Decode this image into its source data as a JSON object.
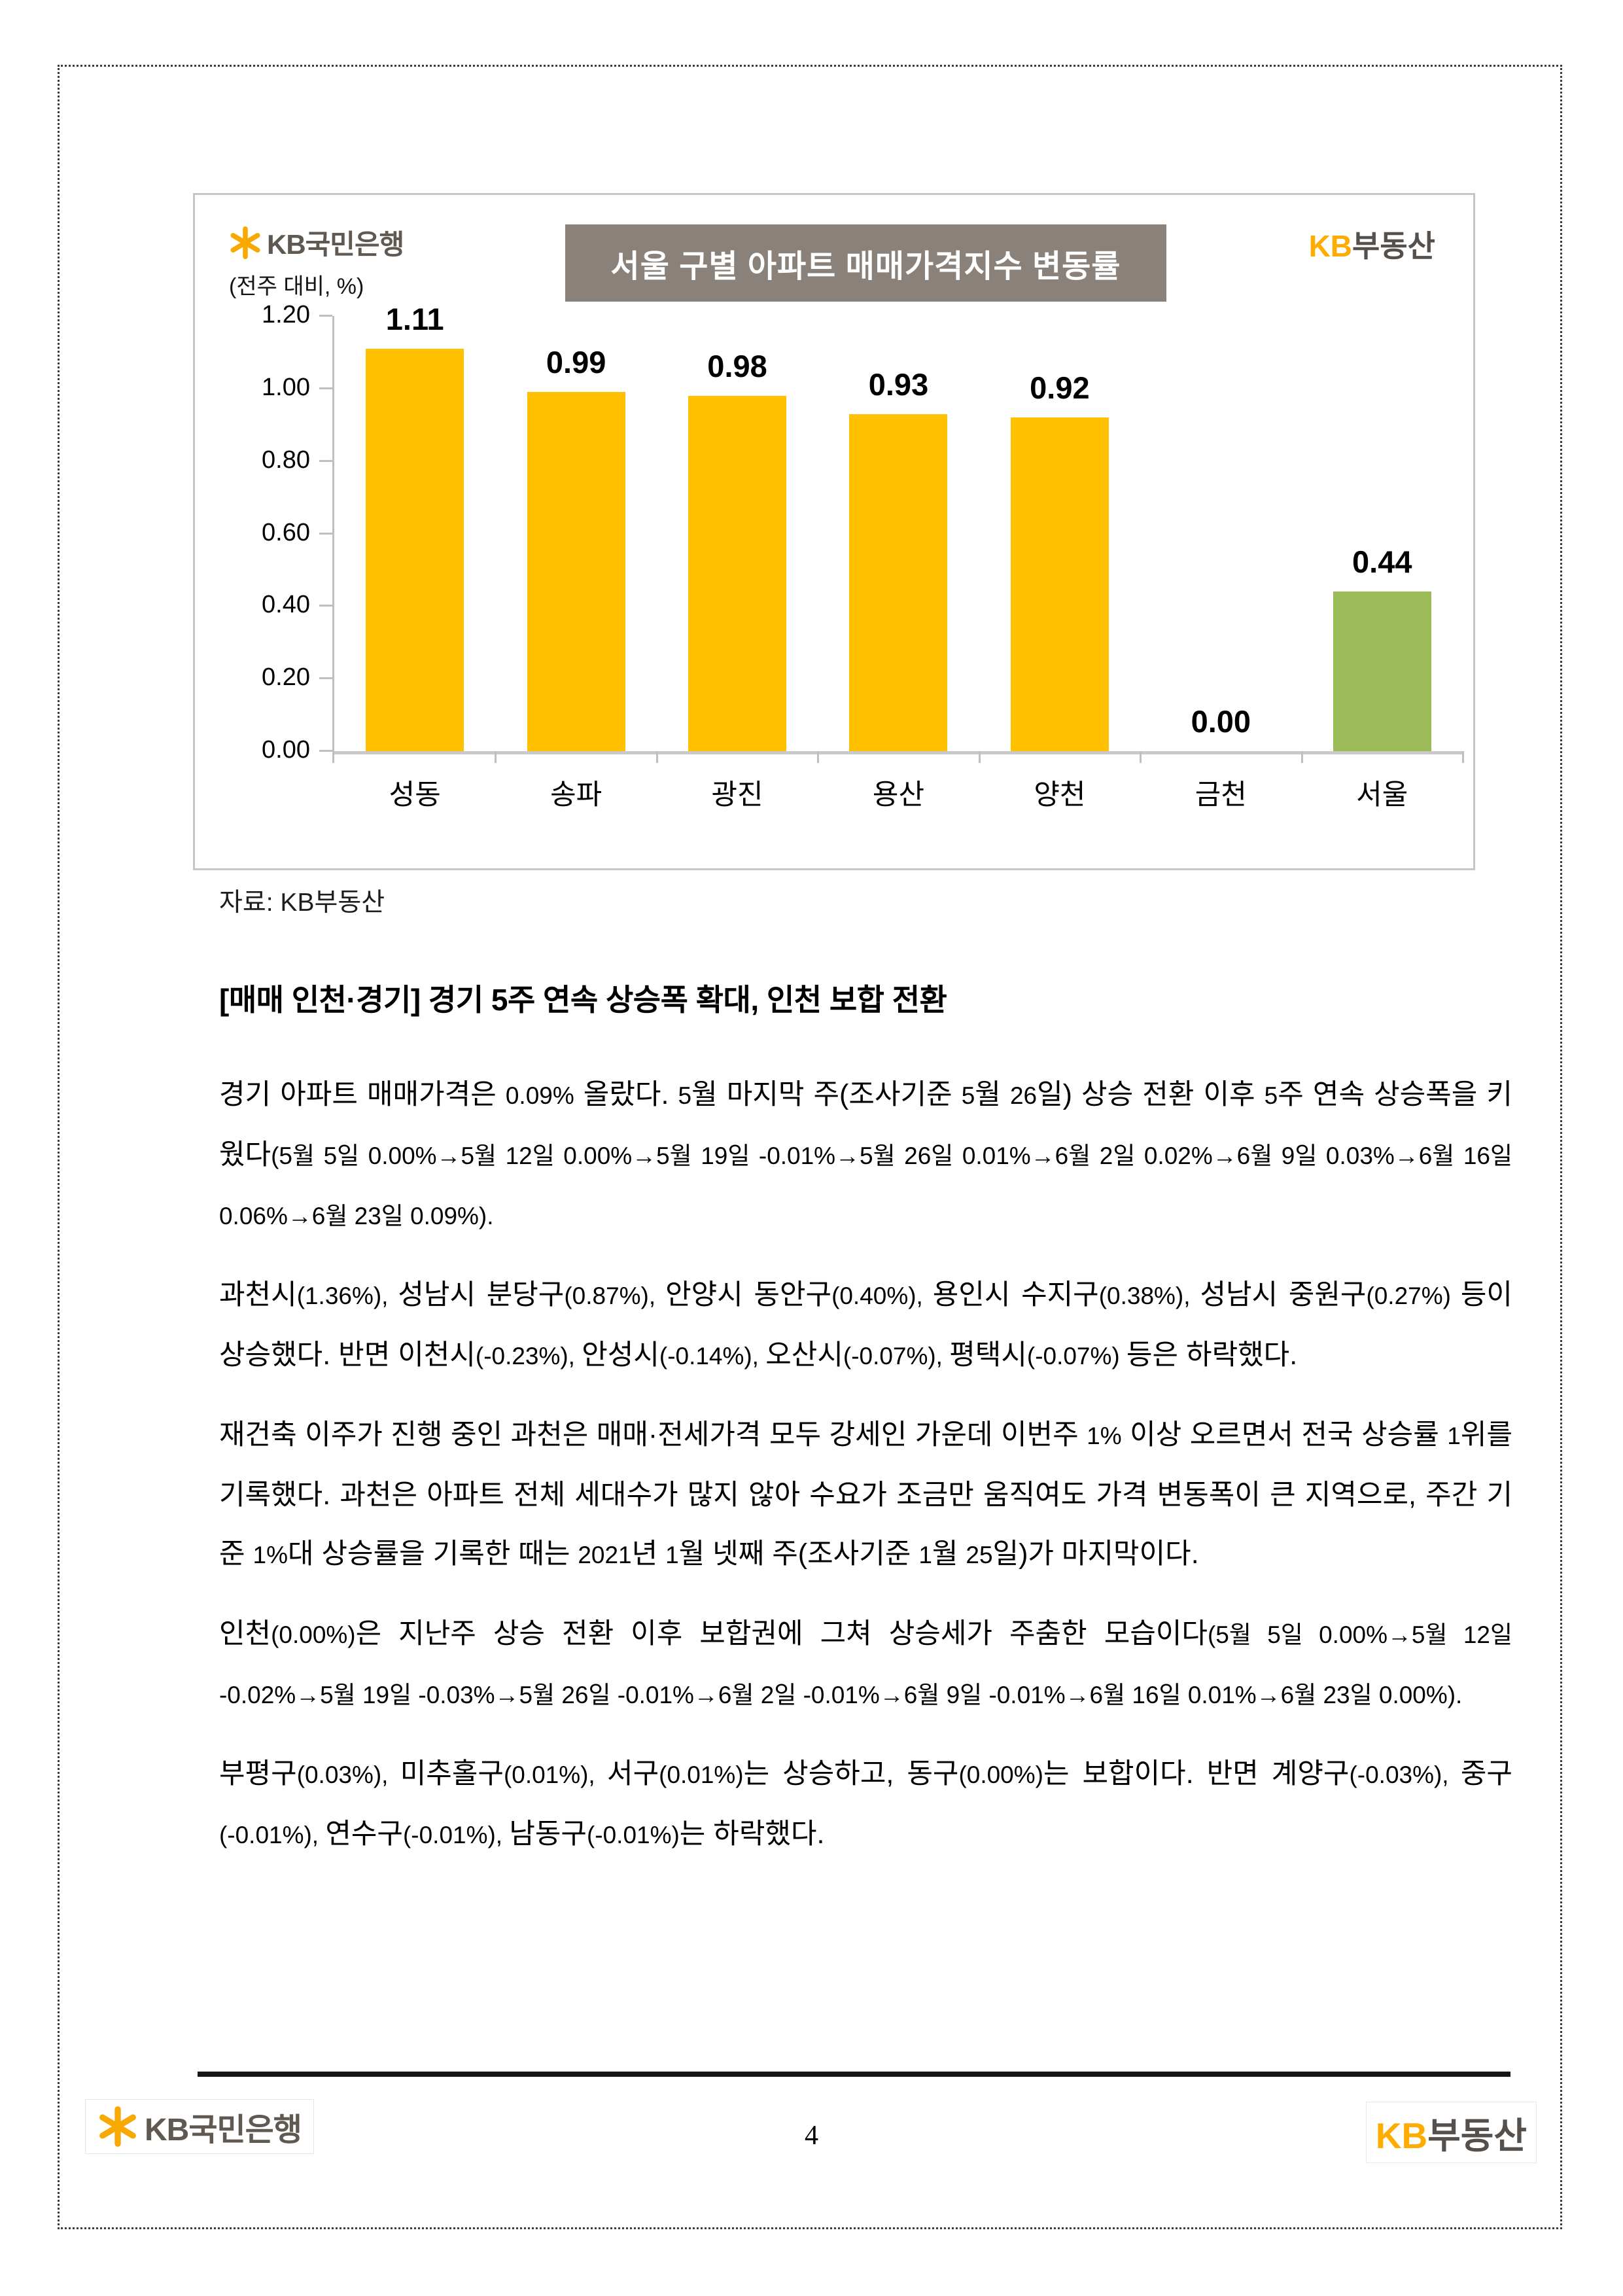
{
  "chart_data": {
    "type": "bar",
    "title": "서울 구별 아파트 매매가격지수 변동률",
    "ylabel": "(전주 대비, %)",
    "categories": [
      "성동",
      "송파",
      "광진",
      "용산",
      "양천",
      "금천",
      "서울"
    ],
    "values": [
      1.11,
      0.99,
      0.98,
      0.93,
      0.92,
      0.0,
      0.44
    ],
    "value_labels": [
      "1.11",
      "0.99",
      "0.98",
      "0.93",
      "0.92",
      "0.00",
      "0.44"
    ],
    "bar_colors": [
      "#FFC000",
      "#FFC000",
      "#FFC000",
      "#FFC000",
      "#FFC000",
      "#FFC000",
      "#9BBB59"
    ],
    "ylim": [
      0,
      1.2
    ],
    "yticks": [
      "1.20",
      "1.00",
      "0.80",
      "0.60",
      "0.40",
      "0.20",
      "0.00"
    ],
    "grid": false,
    "legend": "none"
  },
  "chart": {
    "bank_logo_text": "KB국민은행",
    "rei_logo_kb": "KB",
    "rei_logo_rest": "부동산"
  },
  "source_note": "자료: KB부동산",
  "section": {
    "heading": "[매매 인천·경기] 경기 5주 연속 상승폭 확대, 인천 보합 전환"
  },
  "paragraphs": [
    {
      "segments": [
        {
          "t": "경기 아파트 매매가격은 0.09% 올랐다. 5월 마지막 주(조사기준 5월 26일) 상승 전환 이후 5주 연속 상승폭을 키웠다",
          "s": false
        },
        {
          "t": "(5월 5일 0.00%→5월 12일 0.00%→5월 19일 -0.01%→5월 26일 0.01%→6월 2일 0.02%→6월 9일 0.03%→6월 16일 0.06%→6월 23일 0.09%).",
          "s": true
        }
      ]
    },
    {
      "segments": [
        {
          "t": "과천시",
          "s": false
        },
        {
          "t": "(1.36%), ",
          "s": true
        },
        {
          "t": "성남시 분당구",
          "s": false
        },
        {
          "t": "(0.87%), ",
          "s": true
        },
        {
          "t": "안양시 동안구",
          "s": false
        },
        {
          "t": "(0.40%), ",
          "s": true
        },
        {
          "t": "용인시 수지구",
          "s": false
        },
        {
          "t": "(0.38%), ",
          "s": true
        },
        {
          "t": "성남시 중원구",
          "s": false
        },
        {
          "t": "(0.27%) ",
          "s": true
        },
        {
          "t": "등이 상승했다. 반면 이천시",
          "s": false
        },
        {
          "t": "(-0.23%), ",
          "s": true
        },
        {
          "t": "안성시",
          "s": false
        },
        {
          "t": "(-0.14%), ",
          "s": true
        },
        {
          "t": "오산시",
          "s": false
        },
        {
          "t": "(-0.07%), ",
          "s": true
        },
        {
          "t": "평택시",
          "s": false
        },
        {
          "t": "(-0.07%) ",
          "s": true
        },
        {
          "t": "등은 하락했다.",
          "s": false
        }
      ]
    },
    {
      "segments": [
        {
          "t": "재건축 이주가 진행 중인 과천은 매매·전세가격 모두 강세인 가운데 이번주 1% 이상 오르면서 전국 상승률 1위를 기록했다. 과천은 아파트 전체 세대수가 많지 않아 수요가 조금만 움직여도 가격 변동폭이 큰 지역으로, 주간 기준 1%대 상승률을 기록한 때는 2021년 1월 넷째 주(조사기준 1월 25일)가 마지막이다.",
          "s": false
        }
      ]
    },
    {
      "segments": [
        {
          "t": "인천",
          "s": false
        },
        {
          "t": "(0.00%)",
          "s": true
        },
        {
          "t": "은 지난주 상승 전환 이후 보합권에 그쳐 상승세가 주춤한 모습이다",
          "s": false
        },
        {
          "t": "(5월 5일 0.00%→5월 12일 -0.02%→5월 19일 -0.03%→5월 26일 -0.01%→6월 2일 -0.01%→6월 9일 -0.01%→6월 16일 0.01%→6월 23일 0.00%).",
          "s": true
        }
      ]
    },
    {
      "segments": [
        {
          "t": "부평구",
          "s": false
        },
        {
          "t": "(0.03%), ",
          "s": true
        },
        {
          "t": "미추홀구",
          "s": false
        },
        {
          "t": "(0.01%), ",
          "s": true
        },
        {
          "t": "서구",
          "s": false
        },
        {
          "t": "(0.01%)",
          "s": true
        },
        {
          "t": "는 상승하고, 동구",
          "s": false
        },
        {
          "t": "(0.00%)",
          "s": true
        },
        {
          "t": "는 보합이다. 반면 계양구",
          "s": false
        },
        {
          "t": "(-0.03%), ",
          "s": true
        },
        {
          "t": "중구",
          "s": false
        },
        {
          "t": "(-0.01%), ",
          "s": true
        },
        {
          "t": "연수구",
          "s": false
        },
        {
          "t": "(-0.01%), ",
          "s": true
        },
        {
          "t": "남동구",
          "s": false
        },
        {
          "t": "(-0.01%)",
          "s": true
        },
        {
          "t": "는 하락했다.",
          "s": false
        }
      ]
    },
    {
      "segments": []
    }
  ],
  "footer": {
    "bank_logo_text": "KB국민은행",
    "page_number": "4",
    "rei_logo_kb": "KB",
    "rei_logo_rest": "부동산"
  }
}
